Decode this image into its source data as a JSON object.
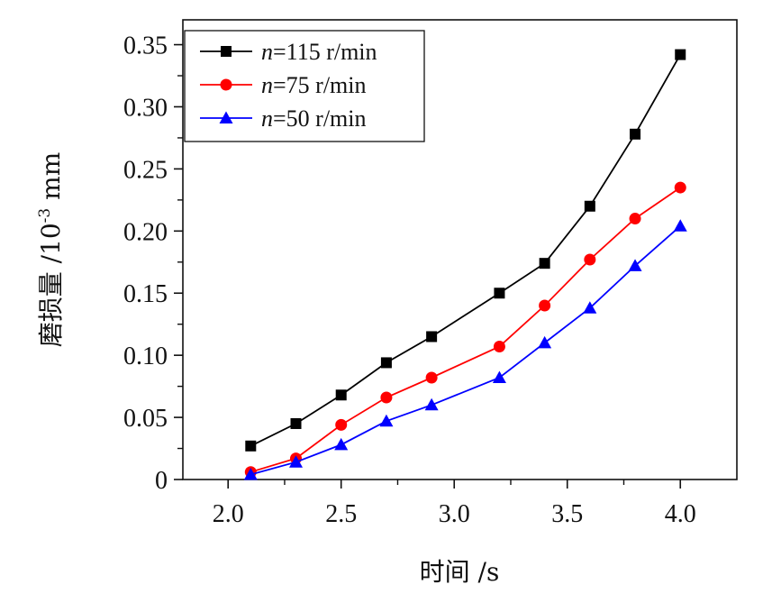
{
  "chart_data": {
    "type": "line",
    "x": [
      2.1,
      2.3,
      2.5,
      2.7,
      2.9,
      3.2,
      3.4,
      3.6,
      3.8,
      4.0
    ],
    "xlabel": "时间 /s",
    "ylabel": "磨损量 /10",
    "ylabel_exponent": "-3",
    "ylabel_unit": " mm",
    "xlim": [
      1.8,
      4.25
    ],
    "ylim": [
      0,
      0.37
    ],
    "x_ticks": [
      {
        "value": 2.0,
        "label": "2.0"
      },
      {
        "value": 2.5,
        "label": "2.5"
      },
      {
        "value": 3.0,
        "label": "3.0"
      },
      {
        "value": 3.5,
        "label": "3.5"
      },
      {
        "value": 4.0,
        "label": "4.0"
      }
    ],
    "y_ticks": [
      {
        "value": 0,
        "label": "0"
      },
      {
        "value": 0.05,
        "label": "0.05"
      },
      {
        "value": 0.1,
        "label": "0.10"
      },
      {
        "value": 0.15,
        "label": "0.15"
      },
      {
        "value": 0.2,
        "label": "0.20"
      },
      {
        "value": 0.25,
        "label": "0.25"
      },
      {
        "value": 0.3,
        "label": "0.30"
      },
      {
        "value": 0.35,
        "label": "0.35"
      }
    ],
    "grid": false,
    "legend_position": "top-left",
    "series": [
      {
        "name_var": "n",
        "name_rest": "=115 r/min",
        "color": "#000000",
        "marker": "square",
        "values": [
          0.027,
          0.045,
          0.068,
          0.094,
          0.115,
          0.15,
          0.174,
          0.22,
          0.278,
          0.342
        ]
      },
      {
        "name_var": "n",
        "name_rest": "=75 r/min",
        "color": "#ff0000",
        "marker": "circle",
        "values": [
          0.006,
          0.017,
          0.044,
          0.066,
          0.082,
          0.107,
          0.14,
          0.177,
          0.21,
          0.235
        ]
      },
      {
        "name_var": "n",
        "name_rest": "=50 r/min",
        "color": "#0000ff",
        "marker": "triangle",
        "values": [
          0.004,
          0.014,
          0.028,
          0.047,
          0.06,
          0.082,
          0.11,
          0.138,
          0.172,
          0.204
        ]
      }
    ]
  }
}
